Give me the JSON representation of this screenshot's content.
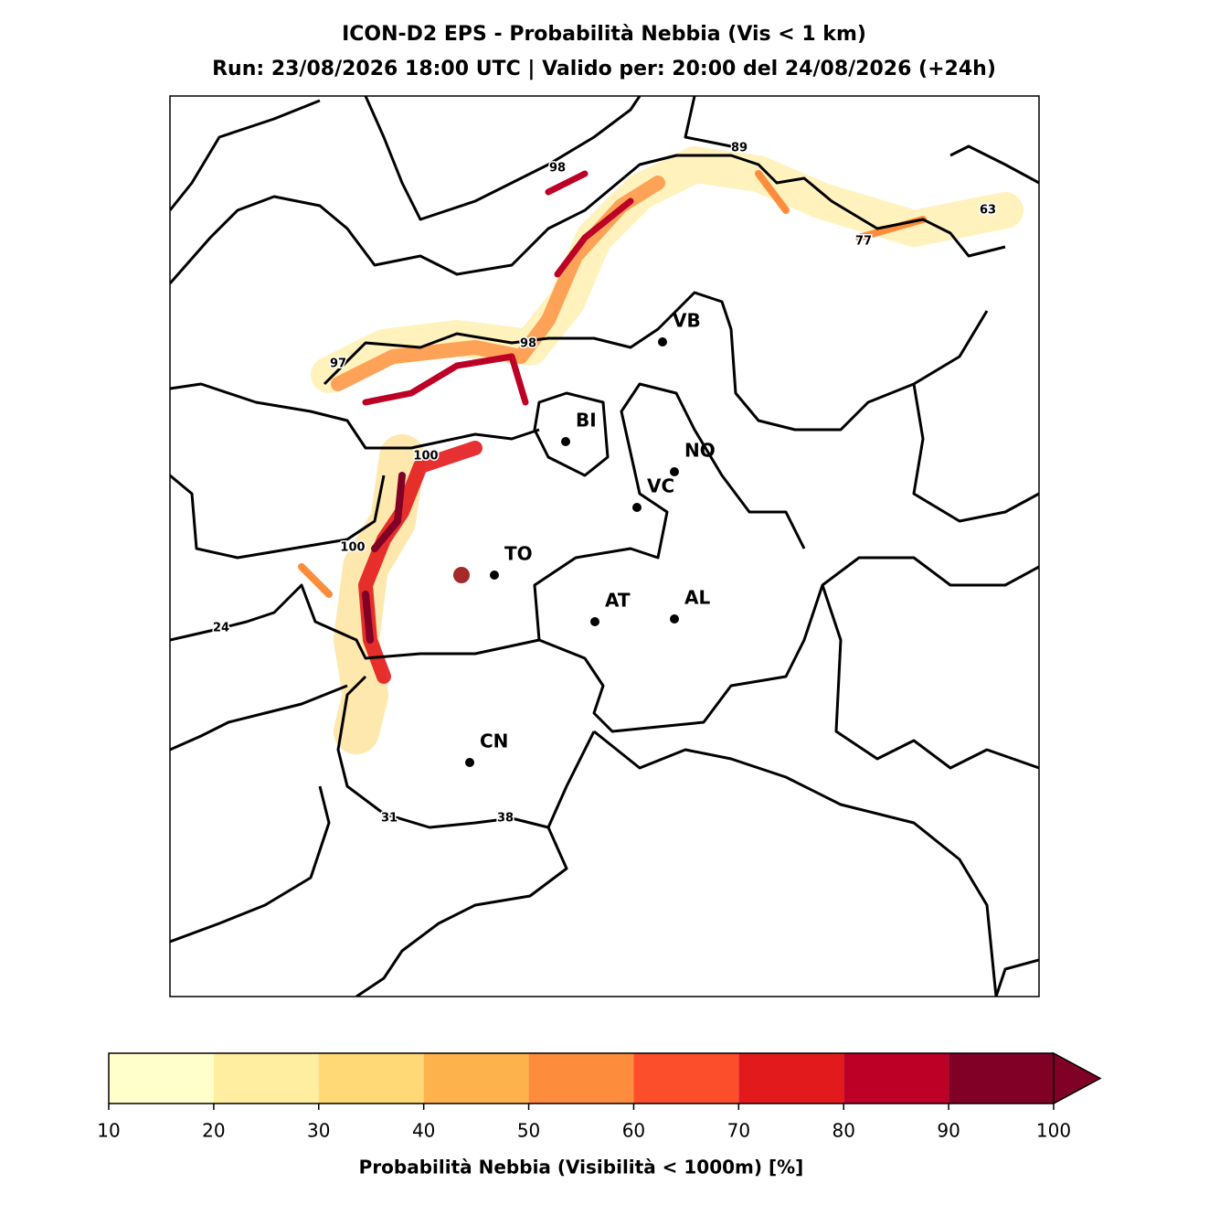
{
  "title": "ICON-D2 EPS - Probabilità Nebbia (Vis < 1 km)",
  "subtitle": "Run: 23/08/2026 18:00 UTC | Valido per: 20:00 del 24/08/2026 (+24h)",
  "cities": [
    "VB",
    "BI",
    "NO",
    "VC",
    "TO",
    "AT",
    "AL",
    "CN"
  ],
  "max_labels": [
    97,
    98,
    98,
    89,
    63,
    77,
    100,
    100,
    24,
    31,
    38
  ],
  "colorbar": {
    "label": "Probabilità Nebbia (Visibilità < 1000m) [%]",
    "ticks": [
      10,
      20,
      30,
      40,
      50,
      60,
      70,
      80,
      90,
      100
    ],
    "colors": [
      "#ffffcc",
      "#ffeda0",
      "#fed976",
      "#feb24c",
      "#fd8d3c",
      "#fc4e2a",
      "#e31a1c",
      "#bd0026",
      "#800026"
    ],
    "extend": "max"
  }
}
